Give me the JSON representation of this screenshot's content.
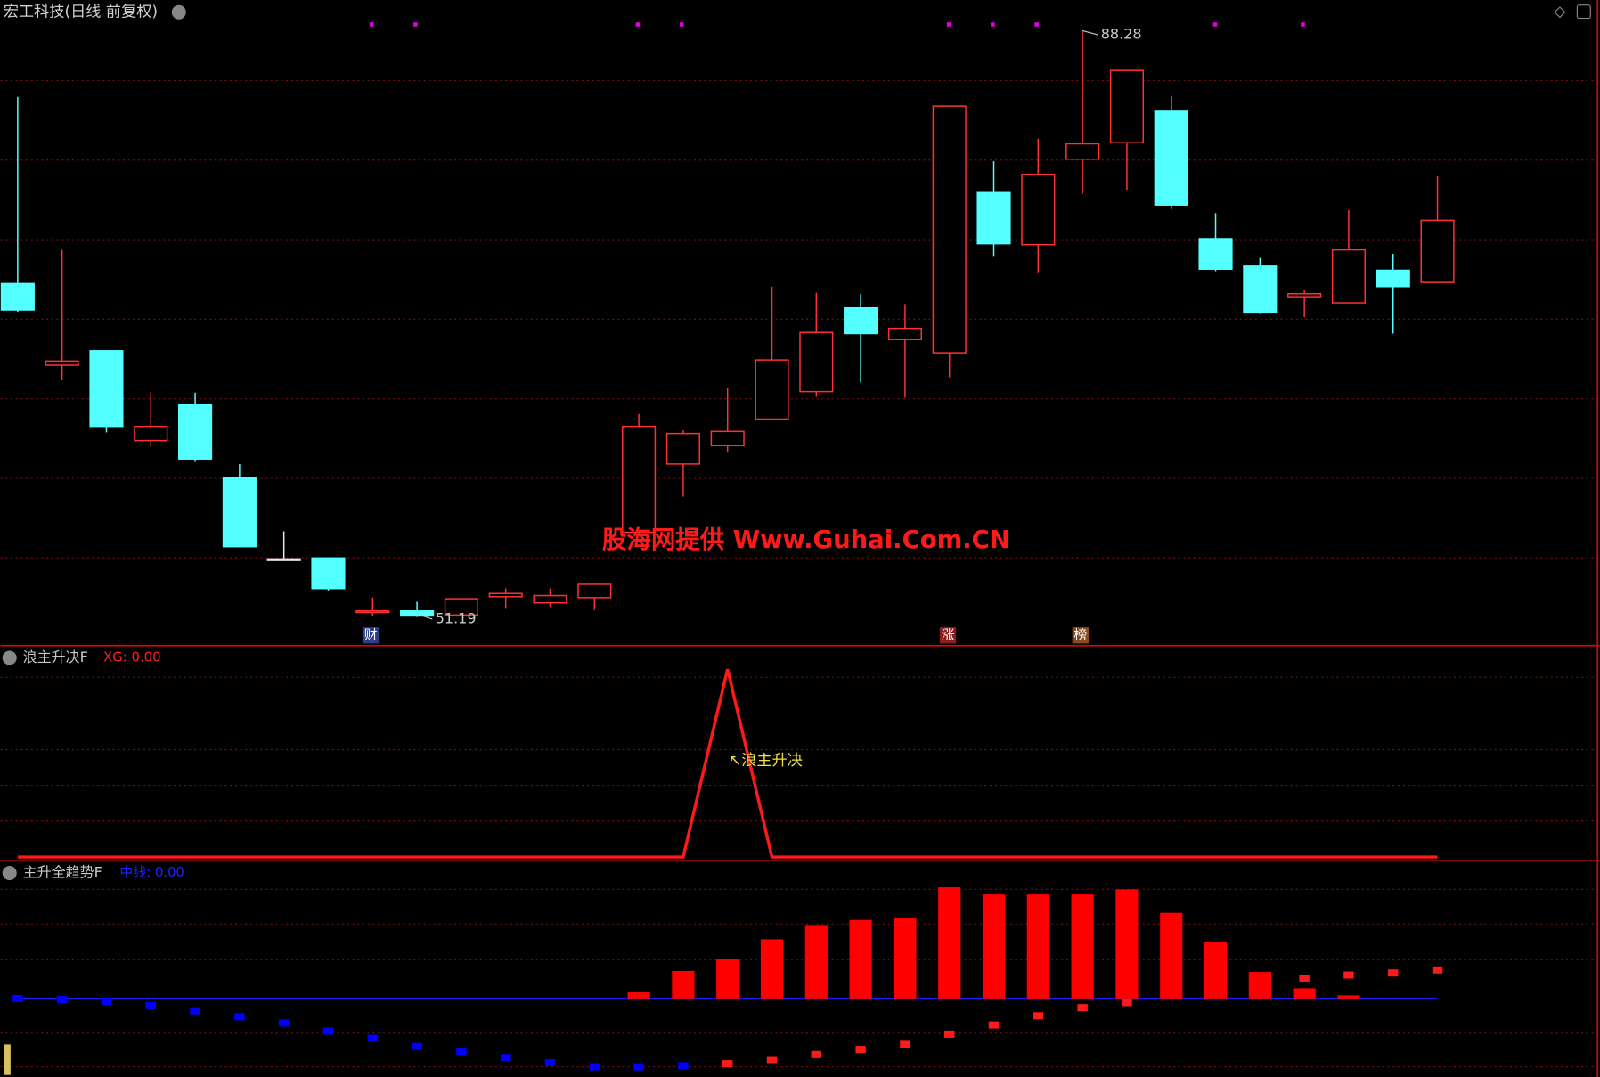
{
  "header": {
    "title": "宏工科技(日线 前复权)"
  },
  "watermark": "股海网提供 Www.Guhai.Com.CN",
  "chart_data": [
    {
      "type": "candlestick",
      "open": [
        72.28,
        67.12,
        68.03,
        62.35,
        64.61,
        60.03,
        54.87,
        54.93,
        51.52,
        51.58,
        51.32,
        52.48,
        52.09,
        52.42,
        56.55,
        60.87,
        62.03,
        63.71,
        65.45,
        70.74,
        68.74,
        67.9,
        78.09,
        74.74,
        80.15,
        81.19,
        83.18,
        75.12,
        73.38,
        71.45,
        71.06,
        73.12,
        72.35
      ],
      "high": [
        84.09,
        74.41,
        68.03,
        65.45,
        65.38,
        60.87,
        56.61,
        54.93,
        52.42,
        52.16,
        52.35,
        53.0,
        53.0,
        53.32,
        64.03,
        63.0,
        65.71,
        72.09,
        71.7,
        71.64,
        70.99,
        83.51,
        80.02,
        81.44,
        88.28,
        85.76,
        84.15,
        76.73,
        73.9,
        71.9,
        76.93,
        74.16,
        79.06
      ],
      "low": [
        70.5,
        66.16,
        62.87,
        61.96,
        61.0,
        55.64,
        54.87,
        52.87,
        51.26,
        51.19,
        51.26,
        51.71,
        51.84,
        51.64,
        56.35,
        58.8,
        61.64,
        63.71,
        65.12,
        66.03,
        65.06,
        66.35,
        74.03,
        72.99,
        77.96,
        78.22,
        76.99,
        73.06,
        70.41,
        70.16,
        71.06,
        69.12,
        72.35
      ],
      "close": [
        70.61,
        67.38,
        63.25,
        63.25,
        61.19,
        55.64,
        54.87,
        52.99,
        51.58,
        51.26,
        52.35,
        52.68,
        52.55,
        53.26,
        63.25,
        62.8,
        62.93,
        67.45,
        69.19,
        69.12,
        69.45,
        83.51,
        74.8,
        79.19,
        81.12,
        85.76,
        77.25,
        73.19,
        70.48,
        71.64,
        74.41,
        72.09,
        76.28
      ],
      "ylim": [
        49.45,
        90.22
      ],
      "up_color": "#ff3232",
      "down_color": "#54ffff",
      "flat_color": "#e8e8e8",
      "annotations": [
        "88.28",
        "51.19"
      ],
      "markers": [
        "财",
        "涨",
        "榜"
      ]
    },
    {
      "type": "line",
      "title": "浪主升决F",
      "legend": "XG: 0.00",
      "annotation": "↖浪主升决",
      "values": [
        0,
        0,
        0,
        0,
        0,
        0,
        0,
        0,
        0,
        0,
        0,
        0,
        0,
        0,
        0,
        0,
        1,
        0,
        0,
        0,
        0,
        0,
        0,
        0,
        0,
        0,
        0,
        0,
        0,
        0,
        0,
        0,
        0
      ],
      "color": "#ff1a1a",
      "ylim": [
        -0.02,
        1.12
      ]
    },
    {
      "type": "bar",
      "title": "主升全趋势F",
      "legend": "中线: 0.00",
      "series": [
        {
          "color": "#ff0000",
          "style": "bar",
          "values": [
            null,
            null,
            null,
            null,
            null,
            null,
            null,
            null,
            null,
            null,
            null,
            null,
            null,
            null,
            0.6,
            2.7,
            3.9,
            5.8,
            7.2,
            7.7,
            7.9,
            10.9,
            10.2,
            10.2,
            10.2,
            10.7,
            8.4,
            5.5,
            2.6,
            1.0,
            0.3,
            null,
            null
          ]
        },
        {
          "color": "#0000ff",
          "style": "dot",
          "values": [
            0.0,
            -0.1,
            -0.3,
            -0.7,
            -1.2,
            -1.8,
            -2.4,
            -3.2,
            -3.9,
            -4.7,
            -5.2,
            -5.8,
            -6.3,
            -6.7,
            -6.7,
            -6.6,
            null,
            null,
            null,
            null,
            null,
            null,
            null,
            null,
            null,
            null,
            null,
            null,
            null,
            null,
            null,
            null,
            null
          ]
        },
        {
          "color": "#ff1a1a",
          "style": "dot",
          "values": [
            null,
            null,
            null,
            null,
            null,
            null,
            null,
            null,
            null,
            null,
            null,
            null,
            null,
            null,
            null,
            null,
            -6.4,
            -6.0,
            -5.5,
            -5.0,
            -4.5,
            -3.5,
            -2.6,
            -1.7,
            -0.9,
            -0.4,
            0.4,
            1.1,
            1.6,
            2.0,
            2.3,
            2.5,
            2.8
          ]
        }
      ],
      "baseline_color": "#1a1aff",
      "ylim": [
        -7.7,
        13.3
      ]
    }
  ]
}
